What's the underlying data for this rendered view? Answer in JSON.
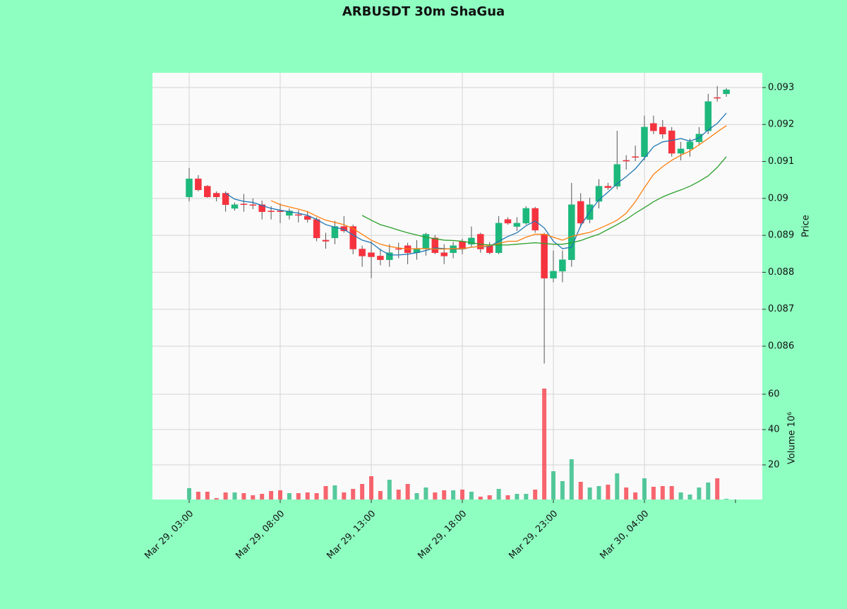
{
  "chart_data": {
    "type": "candlestick",
    "title": "ARBUSDT 30m ShaGua",
    "up_color": "#1db87c",
    "down_color": "#f5333f",
    "grid": true,
    "categories": [
      "Mar 29, 03:00",
      null,
      null,
      null,
      null,
      null,
      null,
      null,
      null,
      null,
      "Mar 29, 08:00",
      null,
      null,
      null,
      null,
      null,
      null,
      null,
      null,
      null,
      "Mar 29, 13:00",
      null,
      null,
      null,
      null,
      null,
      null,
      null,
      null,
      null,
      "Mar 29, 18:00",
      null,
      null,
      null,
      null,
      null,
      null,
      null,
      null,
      null,
      "Mar 29, 23:00",
      null,
      null,
      null,
      null,
      null,
      null,
      null,
      null,
      null,
      "Mar 30, 04:00",
      null,
      null,
      null,
      null,
      null,
      null,
      null,
      null,
      null
    ],
    "open": [
      0.09004,
      0.09053,
      0.09033,
      0.09014,
      0.09014,
      0.08973,
      0.08985,
      0.08983,
      0.08983,
      0.08966,
      0.08966,
      0.08954,
      0.08956,
      0.08952,
      0.08943,
      0.08887,
      0.08893,
      0.08924,
      0.08924,
      0.08863,
      0.08853,
      0.08844,
      0.08834,
      0.08864,
      0.08872,
      0.08853,
      0.08864,
      0.08893,
      0.08853,
      0.08853,
      0.08884,
      0.08876,
      0.08903,
      0.08872,
      0.08853,
      0.08943,
      0.08924,
      0.08933,
      0.08973,
      0.08903,
      0.08784,
      0.08803,
      0.08834,
      0.08992,
      0.08943,
      0.08992,
      0.09033,
      0.09033,
      0.09103,
      0.09113,
      0.09113,
      0.09203,
      0.09193,
      0.09183,
      0.09122,
      0.09134,
      0.09153,
      0.09183,
      0.09273,
      0.09283
    ],
    "high": [
      0.09082,
      0.09063,
      0.09036,
      0.09019,
      0.09019,
      0.08989,
      0.09012,
      0.09,
      0.08994,
      0.08979,
      0.08987,
      0.08973,
      0.08968,
      0.08966,
      0.08949,
      0.08907,
      0.08939,
      0.08952,
      0.08929,
      0.08872,
      0.08884,
      0.08864,
      0.08876,
      0.0888,
      0.0888,
      0.08887,
      0.08907,
      0.08901,
      0.08876,
      0.08882,
      0.08891,
      0.08924,
      0.08907,
      0.08882,
      0.08952,
      0.08949,
      0.08949,
      0.08979,
      0.08977,
      0.08907,
      0.08859,
      0.08859,
      0.09042,
      0.09014,
      0.09002,
      0.09052,
      0.09042,
      0.09183,
      0.09117,
      0.09143,
      0.09224,
      0.09224,
      0.09212,
      0.09193,
      0.09153,
      0.09162,
      0.09193,
      0.09283,
      0.09304,
      0.09298
    ],
    "low": [
      0.08992,
      0.09019,
      0.09002,
      0.08992,
      0.08964,
      0.08967,
      0.08964,
      0.08971,
      0.08943,
      0.08943,
      0.08933,
      0.08943,
      0.08935,
      0.08935,
      0.08884,
      0.08864,
      0.08876,
      0.08907,
      0.08849,
      0.08815,
      0.08784,
      0.08819,
      0.08815,
      0.08838,
      0.08822,
      0.08834,
      0.08845,
      0.08849,
      0.08822,
      0.08838,
      0.08849,
      0.08868,
      0.08853,
      0.08849,
      0.08849,
      0.08929,
      0.08912,
      0.08929,
      0.08907,
      0.08553,
      0.08773,
      0.08773,
      0.08815,
      0.08922,
      0.08933,
      0.08973,
      0.09023,
      0.09025,
      0.09078,
      0.09101,
      0.09103,
      0.09174,
      0.09162,
      0.09113,
      0.09103,
      0.09113,
      0.09143,
      0.09174,
      0.09262,
      0.09275
    ],
    "close": [
      0.09053,
      0.09023,
      0.09004,
      0.09004,
      0.08983,
      0.08983,
      0.08983,
      0.08981,
      0.08964,
      0.08964,
      0.08964,
      0.08966,
      0.08954,
      0.08943,
      0.08893,
      0.08884,
      0.08924,
      0.08912,
      0.08863,
      0.08844,
      0.08842,
      0.08834,
      0.08853,
      0.08863,
      0.08853,
      0.08864,
      0.08903,
      0.08853,
      0.08844,
      0.08872,
      0.08863,
      0.08893,
      0.08863,
      0.08853,
      0.08933,
      0.08933,
      0.08933,
      0.08973,
      0.08914,
      0.08784,
      0.08803,
      0.08834,
      0.08983,
      0.08933,
      0.08983,
      0.09033,
      0.09029,
      0.09092,
      0.09101,
      0.09111,
      0.09193,
      0.09183,
      0.09174,
      0.09122,
      0.09134,
      0.09153,
      0.09174,
      0.09262,
      0.09271,
      0.09294
    ],
    "lines": [
      {
        "color": "#1f77b4",
        "values": [
          null,
          null,
          null,
          null,
          0.09014,
          0.08998,
          0.08992,
          0.08989,
          0.08981,
          0.08973,
          0.08968,
          0.08964,
          0.0896,
          0.08954,
          0.08943,
          0.08929,
          0.08922,
          0.08916,
          0.08901,
          0.08887,
          0.0888,
          0.08861,
          0.08847,
          0.08847,
          0.08849,
          0.08853,
          0.08859,
          0.08866,
          0.08864,
          0.08863,
          0.08863,
          0.08868,
          0.0887,
          0.0887,
          0.08884,
          0.08897,
          0.08907,
          0.08926,
          0.08939,
          0.0892,
          0.08884,
          0.08864,
          0.08868,
          0.08926,
          0.08964,
          0.08996,
          0.09017,
          0.0904,
          0.09059,
          0.0908,
          0.09109,
          0.0914,
          0.09153,
          0.09157,
          0.09162,
          0.09155,
          0.09164,
          0.09185,
          0.09203,
          0.09231
        ]
      },
      {
        "color": "#ff7f0e",
        "values": [
          null,
          null,
          null,
          null,
          null,
          null,
          null,
          null,
          null,
          0.08994,
          0.08983,
          0.08977,
          0.08971,
          0.08964,
          0.08952,
          0.08941,
          0.08935,
          0.08929,
          0.08918,
          0.08903,
          0.08887,
          0.08876,
          0.0887,
          0.08866,
          0.08863,
          0.08864,
          0.08864,
          0.08863,
          0.08863,
          0.08864,
          0.08864,
          0.08868,
          0.0887,
          0.08872,
          0.08878,
          0.08884,
          0.08884,
          0.08895,
          0.08903,
          0.08903,
          0.08895,
          0.08887,
          0.08897,
          0.08903,
          0.08908,
          0.08918,
          0.08929,
          0.08941,
          0.0896,
          0.08991,
          0.09029,
          0.09065,
          0.09086,
          0.09103,
          0.09117,
          0.09128,
          0.09145,
          0.09162,
          0.0918,
          0.09197
        ]
      },
      {
        "color": "#2ca02c",
        "values": [
          null,
          null,
          null,
          null,
          null,
          null,
          null,
          null,
          null,
          null,
          null,
          null,
          null,
          null,
          null,
          null,
          null,
          null,
          null,
          0.08954,
          0.08941,
          0.08929,
          0.08922,
          0.08914,
          0.08907,
          0.08901,
          0.08895,
          0.08891,
          0.08887,
          0.08886,
          0.08884,
          0.0888,
          0.08876,
          0.08874,
          0.08874,
          0.08874,
          0.08876,
          0.08878,
          0.0888,
          0.08878,
          0.08876,
          0.08876,
          0.0888,
          0.08886,
          0.08895,
          0.08903,
          0.08916,
          0.08929,
          0.08943,
          0.0896,
          0.08975,
          0.08991,
          0.09004,
          0.09014,
          0.09023,
          0.09033,
          0.09046,
          0.09061,
          0.09084,
          0.09113
        ]
      }
    ],
    "ylabel": "Price",
    "ylim": [
      0.08514,
      0.0934
    ],
    "yticks": [
      0.086,
      0.087,
      0.088,
      0.089,
      0.09,
      0.091,
      0.092,
      0.093
    ],
    "volume": {
      "ylabel": "Volume  10⁶",
      "ylim": [
        0.4,
        69.2
      ],
      "yticks": [
        20,
        40,
        60
      ],
      "values": [
        6.8,
        4.8,
        4.8,
        1.2,
        4.4,
        4.4,
        4,
        2.8,
        3.6,
        5.2,
        5.6,
        4,
        4,
        4.4,
        4,
        8,
        8.4,
        4.4,
        6.4,
        9.2,
        13.6,
        5.2,
        11.6,
        6,
        9.2,
        4,
        7.2,
        4.4,
        5.6,
        5.6,
        6,
        4.8,
        2,
        2.8,
        6.4,
        2.8,
        3.6,
        3.6,
        6,
        63.2,
        16.4,
        10.8,
        23.2,
        10.4,
        7.2,
        8,
        8.8,
        15.2,
        7.2,
        4.4,
        12.4,
        7.6,
        8,
        8,
        4.4,
        3.2,
        7.2,
        10,
        12.4,
        0.8
      ]
    }
  }
}
